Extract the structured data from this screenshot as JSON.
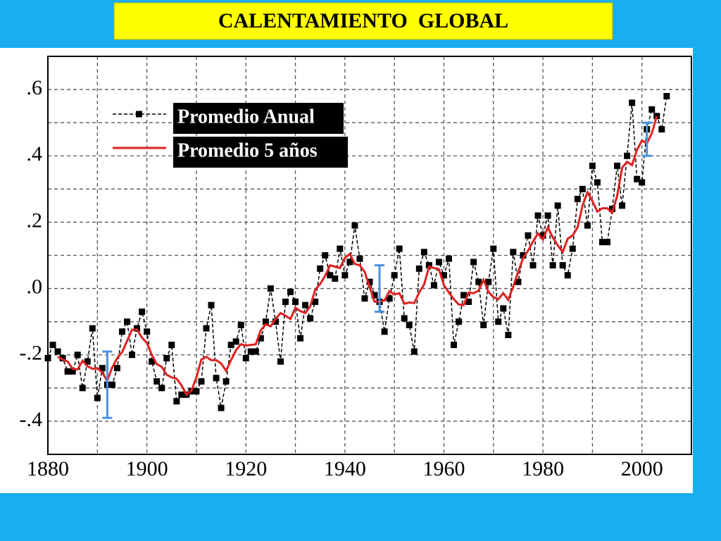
{
  "chart_data": {
    "type": "line",
    "title": "CALENTAMIENTO  GLOBAL",
    "x": [
      1880,
      1881,
      1882,
      1883,
      1884,
      1885,
      1886,
      1887,
      1888,
      1889,
      1890,
      1891,
      1892,
      1893,
      1894,
      1895,
      1896,
      1897,
      1898,
      1899,
      1900,
      1901,
      1902,
      1903,
      1904,
      1905,
      1906,
      1907,
      1908,
      1909,
      1910,
      1911,
      1912,
      1913,
      1914,
      1915,
      1916,
      1917,
      1918,
      1919,
      1920,
      1921,
      1922,
      1923,
      1924,
      1925,
      1926,
      1927,
      1928,
      1929,
      1930,
      1931,
      1932,
      1933,
      1934,
      1935,
      1936,
      1937,
      1938,
      1939,
      1940,
      1941,
      1942,
      1943,
      1944,
      1945,
      1946,
      1947,
      1948,
      1949,
      1950,
      1951,
      1952,
      1953,
      1954,
      1955,
      1956,
      1957,
      1958,
      1959,
      1960,
      1961,
      1962,
      1963,
      1964,
      1965,
      1966,
      1967,
      1968,
      1969,
      1970,
      1971,
      1972,
      1973,
      1974,
      1975,
      1976,
      1977,
      1978,
      1979,
      1980,
      1981,
      1982,
      1983,
      1984,
      1985,
      1986,
      1987,
      1988,
      1989,
      1990,
      1991,
      1992,
      1993,
      1994,
      1995,
      1996,
      1997,
      1998,
      1999,
      2000,
      2001,
      2002,
      2003,
      2004,
      2005
    ],
    "series": [
      {
        "name": "Promedio Anual",
        "color": "#000000",
        "linestyle": "dashed",
        "marker": "square",
        "values": [
          -0.21,
          -0.17,
          -0.19,
          -0.21,
          -0.25,
          -0.25,
          -0.2,
          -0.3,
          -0.22,
          -0.12,
          -0.33,
          -0.24,
          -0.29,
          -0.29,
          -0.24,
          -0.13,
          -0.1,
          -0.2,
          -0.12,
          -0.07,
          -0.13,
          -0.22,
          -0.28,
          -0.3,
          -0.21,
          -0.17,
          -0.34,
          -0.32,
          -0.32,
          -0.31,
          -0.31,
          -0.28,
          -0.12,
          -0.05,
          -0.27,
          -0.36,
          -0.28,
          -0.17,
          -0.16,
          -0.11,
          -0.21,
          -0.19,
          -0.19,
          -0.15,
          -0.1,
          0.0,
          -0.1,
          -0.22,
          -0.04,
          -0.01,
          -0.04,
          -0.15,
          -0.05,
          -0.09,
          -0.04,
          0.06,
          0.1,
          0.04,
          0.03,
          0.12,
          0.04,
          0.08,
          0.19,
          0.09,
          -0.03,
          0.02,
          -0.02,
          -0.04,
          -0.13,
          -0.03,
          0.04,
          0.12,
          -0.09,
          -0.11,
          -0.19,
          0.06,
          0.11,
          0.07,
          0.01,
          0.08,
          0.04,
          0.09,
          -0.17,
          -0.1,
          -0.02,
          -0.04,
          0.08,
          0.02,
          -0.11,
          0.02,
          0.12,
          -0.1,
          -0.06,
          -0.14,
          0.11,
          0.02,
          0.1,
          0.16,
          0.07,
          0.22,
          0.16,
          0.22,
          0.07,
          0.25,
          0.07,
          0.04,
          0.12,
          0.27,
          0.3,
          0.19,
          0.37,
          0.32,
          0.14,
          0.14,
          0.24,
          0.37,
          0.25,
          0.4,
          0.56,
          0.33,
          0.32,
          0.48,
          0.54,
          0.52,
          0.48,
          0.58
        ]
      },
      {
        "name": "Promedio 5 años",
        "color": "#e02020",
        "linestyle": "solid",
        "values": [
          null,
          null,
          -0.206,
          -0.214,
          -0.22,
          -0.242,
          -0.244,
          -0.218,
          -0.234,
          -0.242,
          -0.24,
          -0.254,
          -0.278,
          -0.238,
          -0.21,
          -0.192,
          -0.158,
          -0.124,
          -0.124,
          -0.148,
          -0.164,
          -0.2,
          -0.228,
          -0.236,
          -0.26,
          -0.268,
          -0.272,
          -0.292,
          -0.32,
          -0.308,
          -0.268,
          -0.214,
          -0.206,
          -0.216,
          -0.216,
          -0.226,
          -0.248,
          -0.216,
          -0.186,
          -0.168,
          -0.172,
          -0.17,
          -0.168,
          -0.126,
          -0.108,
          -0.114,
          -0.092,
          -0.074,
          -0.082,
          -0.092,
          -0.058,
          -0.068,
          -0.074,
          -0.054,
          -0.004,
          0.014,
          0.038,
          0.07,
          0.066,
          0.062,
          0.092,
          0.104,
          0.074,
          0.07,
          0.05,
          0.004,
          -0.04,
          -0.04,
          -0.036,
          -0.008,
          -0.018,
          -0.014,
          -0.046,
          -0.042,
          -0.044,
          -0.012,
          0.012,
          0.066,
          0.062,
          0.058,
          0.01,
          -0.012,
          -0.032,
          -0.048,
          -0.05,
          -0.012,
          -0.014,
          -0.006,
          0.026,
          -0.01,
          -0.026,
          -0.032,
          -0.014,
          -0.034,
          0.006,
          0.05,
          0.092,
          0.114,
          0.142,
          0.166,
          0.148,
          0.184,
          0.154,
          0.13,
          0.11,
          0.15,
          0.16,
          0.184,
          0.25,
          0.29,
          0.264,
          0.232,
          0.242,
          0.242,
          0.228,
          0.28,
          0.364,
          0.382,
          0.372,
          0.418,
          0.446,
          0.438,
          0.468,
          0.52,
          null,
          null
        ]
      }
    ],
    "error_bars": {
      "color": "#4a90e2",
      "x": [
        1892,
        1947,
        2001
      ],
      "values": [
        -0.29,
        0,
        0.45
      ],
      "errors": [
        0.1,
        0.07,
        0.05
      ]
    },
    "xlim": [
      1880,
      2010
    ],
    "xticks": [
      1880,
      1900,
      1920,
      1940,
      1960,
      1980,
      2000
    ],
    "xminorticks": [
      1890,
      1910,
      1930,
      1950,
      1970,
      1990
    ],
    "ylim": [
      -0.5,
      0.7
    ],
    "yticks": [
      {
        "value": -0.4,
        "label": "-.4"
      },
      {
        "value": -0.2,
        "label": "-.2"
      },
      {
        "value": 0,
        "label": ".0"
      },
      {
        "value": 0.2,
        "label": ".2"
      },
      {
        "value": 0.4,
        "label": ".4"
      },
      {
        "value": 0.6,
        "label": ".6"
      }
    ],
    "yminorticks": [
      -0.3,
      -0.1,
      0.1,
      0.3,
      0.5
    ],
    "grid": true,
    "legend": "upper left"
  }
}
